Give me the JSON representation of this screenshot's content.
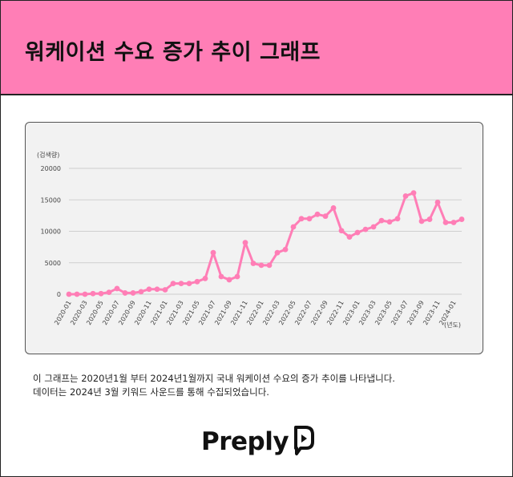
{
  "header": {
    "title": "워케이션 수요 증가 추이 그래프"
  },
  "chart_data": {
    "type": "line",
    "ylabel": "(검색량)",
    "xlabel": "(년도)",
    "ylim": [
      0,
      20000
    ],
    "yticks": [
      0,
      5000,
      10000,
      15000,
      20000
    ],
    "grid": true,
    "line_color": "#ff7eb6",
    "x": [
      "2020-01",
      "2020-02",
      "2020-03",
      "2020-04",
      "2020-05",
      "2020-06",
      "2020-07",
      "2020-08",
      "2020-09",
      "2020-10",
      "2020-11",
      "2020-12",
      "2021-01",
      "2021-02",
      "2021-03",
      "2021-04",
      "2021-05",
      "2021-06",
      "2021-07",
      "2021-08",
      "2021-09",
      "2021-10",
      "2021-11",
      "2021-12",
      "2022-01",
      "2022-02",
      "2022-03",
      "2022-04",
      "2022-05",
      "2022-06",
      "2022-07",
      "2022-08",
      "2022-09",
      "2022-10",
      "2022-11",
      "2022-12",
      "2023-01",
      "2023-02",
      "2023-03",
      "2023-04",
      "2023-05",
      "2023-06",
      "2023-07",
      "2023-08",
      "2023-09",
      "2023-10",
      "2023-11",
      "2023-12",
      "2024-01",
      "2024-02"
    ],
    "xtick_labels": [
      "2020-01",
      "2020-03",
      "2020-05",
      "2020-07",
      "2020-09",
      "2020-11",
      "2021-01",
      "2021-03",
      "2021-05",
      "2021-07",
      "2021-09",
      "2021-11",
      "2022-01",
      "2022-03",
      "2022-05",
      "2022-07",
      "2022-09",
      "2022-11",
      "2023-01",
      "2023-03",
      "2023-05",
      "2023-07",
      "2023-09",
      "2023-11",
      "2024-01"
    ],
    "y": [
      0,
      0,
      0,
      100,
      100,
      300,
      900,
      200,
      200,
      400,
      800,
      800,
      700,
      1700,
      1700,
      1700,
      2000,
      2500,
      6600,
      2800,
      2300,
      2800,
      8200,
      4900,
      4600,
      4600,
      6600,
      7100,
      10700,
      12000,
      12000,
      12700,
      12400,
      13700,
      10100,
      9100,
      9800,
      10300,
      10700,
      11700,
      11500,
      12000,
      15600,
      16100,
      11600,
      11900,
      14600,
      11400,
      11400,
      11900
    ]
  },
  "caption": {
    "line1": "이 그래프는 2020년1월 부터 2024년1월까지 국내 워케이션 수요의 증가 추이를 나타냅니다.",
    "line2": "데이터는 2024년 3월 키워드 사운드를 통해 수집되었습니다."
  },
  "logo": {
    "text": "Preply",
    "icon": "preply-bubble-icon"
  }
}
